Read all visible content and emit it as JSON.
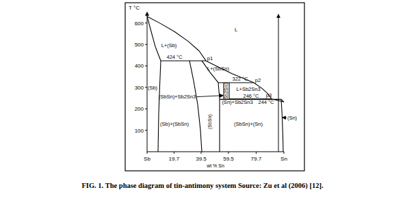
{
  "chart_data": {
    "type": "line",
    "title": "FIG. 1. The phase diagram of tin-antimony system Source: Zu et al (2006) [12].",
    "x_label": "wt % Sn",
    "y_label": "T °C",
    "color": "#000000",
    "xlim": [
      0,
      100
    ],
    "ylim": [
      0,
      650
    ],
    "xticks": [
      {
        "value": 0,
        "label": "Sb"
      },
      19.7,
      39.5,
      59.5,
      79.7,
      {
        "value": 100,
        "label": "Sn"
      }
    ],
    "yticks": [
      100,
      200,
      300,
      400,
      500,
      600
    ],
    "grid": false,
    "series": [
      {
        "x": [
          0,
          10,
          20,
          30,
          38,
          43
        ],
        "values": [
          631,
          597,
          560,
          515,
          470,
          424
        ]
      },
      {
        "x": [
          43,
          52,
          62,
          72,
          78
        ],
        "values": [
          424,
          395,
          364,
          338,
          322
        ]
      },
      {
        "x": [
          78,
          84,
          88,
          91
        ],
        "values": [
          322,
          295,
          272,
          246
        ]
      },
      {
        "x": [
          91,
          95,
          100
        ],
        "values": [
          246,
          240,
          232
        ]
      },
      {
        "x": [
          0,
          3,
          6,
          10
        ],
        "values": [
          631,
          560,
          490,
          424
        ]
      },
      {
        "x": [
          10,
          9.2,
          8.5,
          8
        ],
        "values": [
          424,
          300,
          180,
          0
        ]
      },
      {
        "x": [
          10,
          43
        ],
        "values": [
          424,
          424
        ]
      },
      {
        "x": [
          31,
          34,
          37,
          39,
          40
        ],
        "values": [
          424,
          330,
          220,
          100,
          0
        ]
      },
      {
        "x": [
          40,
          46,
          52,
          53,
          53
        ],
        "values": [
          424,
          370,
          322,
          246,
          0
        ]
      },
      {
        "x": [
          52,
          78
        ],
        "values": [
          322,
          322
        ]
      },
      {
        "x": [
          56,
          56
        ],
        "values": [
          322,
          244
        ]
      },
      {
        "x": [
          60,
          60
        ],
        "values": [
          322,
          246
        ]
      },
      {
        "x": [
          60,
          91
        ],
        "values": [
          246,
          246
        ]
      },
      {
        "x": [
          53,
          98
        ],
        "values": [
          244,
          244
        ]
      },
      {
        "x": [
          98,
          100
        ],
        "values": [
          244,
          232
        ]
      },
      {
        "x": [
          98,
          98.6,
          99.2,
          99.5
        ],
        "values": [
          244,
          180,
          80,
          0
        ]
      }
    ],
    "arrows": [
      {
        "x": [
          96,
          96
        ],
        "values": [
          0,
          640
        ]
      }
    ],
    "annotations": [
      {
        "text": "L",
        "x": 65,
        "y": 560
      },
      {
        "text": "L+(Sb)",
        "x": 16,
        "y": 487
      },
      {
        "text": "(Sb)",
        "x": 4,
        "y": 290
      },
      {
        "text": "424 °C",
        "x": 20,
        "y": 432
      },
      {
        "text": "p1",
        "x": 46,
        "y": 428
      },
      {
        "text": "L+(SbSn)",
        "x": 52,
        "y": 380
      },
      {
        "text": "322 °C",
        "x": 68,
        "y": 330
      },
      {
        "text": "p2",
        "x": 81,
        "y": 326
      },
      {
        "text": "L+Sb2Sn3",
        "x": 74,
        "y": 283
      },
      {
        "text": "Sb2Sn3",
        "x": 58,
        "y": 284,
        "orientation": "vertical"
      },
      {
        "text": "246 °C",
        "x": 76,
        "y": 252
      },
      {
        "text": "p3",
        "x": 89,
        "y": 255
      },
      {
        "text": "(SbSn)+Sb2Sn3",
        "x": 22,
        "y": 248,
        "arrow_to": [
          55.5,
          262
        ]
      },
      {
        "text": "(Sn)+Sb2Sn3",
        "x": 66,
        "y": 222
      },
      {
        "text": "244 °C",
        "x": 87,
        "y": 222
      },
      {
        "text": "(Sb)+(SbSn)",
        "x": 20,
        "y": 120
      },
      {
        "text": "(SbSn)",
        "x": 46,
        "y": 140,
        "orientation": "vertical"
      },
      {
        "text": "(SbSn)+(Sn)",
        "x": 74,
        "y": 120
      },
      {
        "text": "(Sn)",
        "x": 106,
        "y": 150,
        "arrow_to": [
          99,
          160
        ]
      }
    ]
  }
}
